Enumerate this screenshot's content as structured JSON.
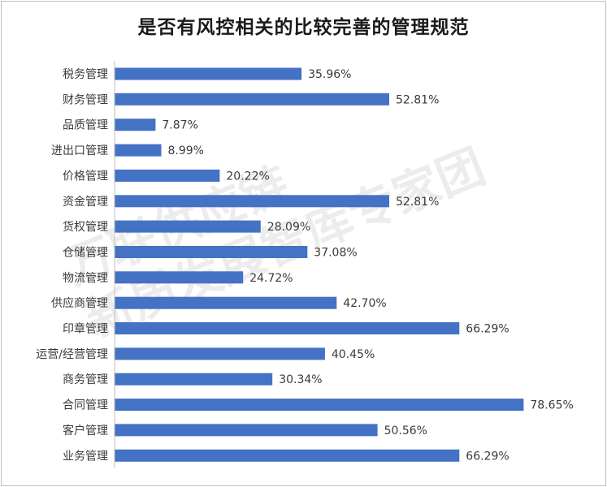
{
  "watermark": {
    "line1": "万联供应链",
    "line2": "新质发展智库专家团"
  },
  "colors": {
    "bar": "#4472C4",
    "axis": "#bfbfbf",
    "text": "#3a3a3a"
  },
  "chart_data": {
    "type": "bar",
    "orientation": "horizontal",
    "title": "是否有风控相关的比较完善的管理规范",
    "xlabel": "",
    "ylabel": "",
    "xlim": [
      0,
      100
    ],
    "grid": false,
    "legend": "none",
    "categories": [
      "税务管理",
      "财务管理",
      "品质管理",
      "进出口管理",
      "价格管理",
      "资金管理",
      "货权管理",
      "仓储管理",
      "物流管理",
      "供应商管理",
      "印章管理",
      "运营/经营管理",
      "商务管理",
      "合同管理",
      "客户管理",
      "业务管理"
    ],
    "values": [
      35.96,
      52.81,
      7.87,
      8.99,
      20.22,
      52.81,
      28.09,
      37.08,
      24.72,
      42.7,
      66.29,
      40.45,
      30.34,
      78.65,
      50.56,
      66.29
    ],
    "value_labels": [
      "35.96%",
      "52.81%",
      "7.87%",
      "8.99%",
      "20.22%",
      "52.81%",
      "28.09%",
      "37.08%",
      "24.72%",
      "42.70%",
      "66.29%",
      "40.45%",
      "30.34%",
      "78.65%",
      "50.56%",
      "66.29%"
    ]
  }
}
